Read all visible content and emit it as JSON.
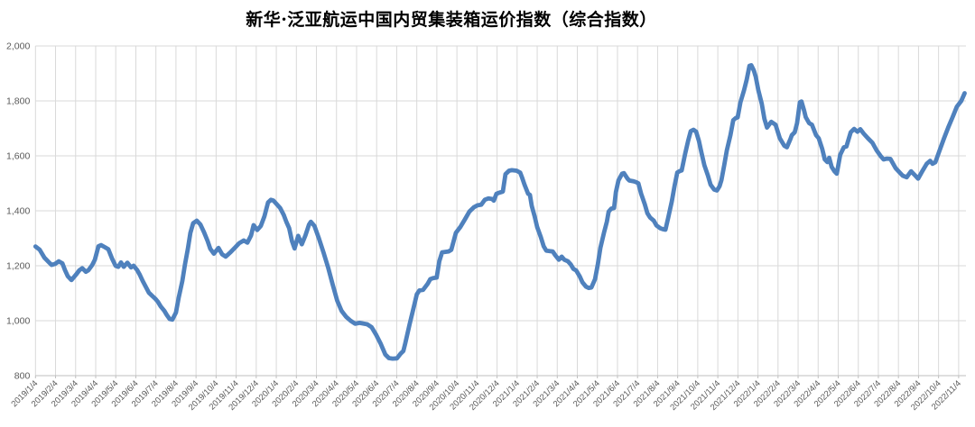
{
  "chart_data": {
    "type": "line",
    "title": "新华·泛亚航运中国内贸集装箱运价指数（综合指数）",
    "legend": "none",
    "grid": true,
    "colors": {
      "line": "#4F81BD",
      "gridline": "#D9D9D9",
      "axis_line": "#BFBFBF",
      "axis_text": "#595959",
      "title_text": "#000000",
      "background": "#FFFFFF"
    },
    "y_axis": {
      "min": 800,
      "max": 2000,
      "step": 200,
      "tick_labels": [
        "800",
        "1,000",
        "1,200",
        "1,400",
        "1,600",
        "1,800",
        "2,000"
      ]
    },
    "x_axis": {
      "label_rotation": -45,
      "categories": [
        "2019/1/4",
        "2019/2/4",
        "2019/3/4",
        "2019/4/4",
        "2019/5/4",
        "2019/6/4",
        "2019/7/4",
        "2019/8/4",
        "2019/9/4",
        "2019/10/4",
        "2019/11/4",
        "2019/12/4",
        "2020/1/4",
        "2020/2/4",
        "2020/3/4",
        "2020/4/4",
        "2020/5/4",
        "2020/6/4",
        "2020/7/4",
        "2020/8/4",
        "2020/9/4",
        "2020/10/4",
        "2020/11/4",
        "2020/12/4",
        "2021/1/4",
        "2021/2/4",
        "2021/3/4",
        "2021/4/4",
        "2021/5/4",
        "2021/6/4",
        "2021/7/4",
        "2021/8/4",
        "2021/9/4",
        "2021/10/4",
        "2021/11/4",
        "2021/12/4",
        "2022/1/4",
        "2022/2/4",
        "2022/3/4",
        "2022/4/4",
        "2022/5/4",
        "2022/6/4",
        "2022/7/4",
        "2022/8/4",
        "2022/9/4",
        "2022/10/4",
        "2022/11/4"
      ]
    },
    "series": [
      {
        "name": "综合指数",
        "x_unit": "month-index (0 = 2019/1/4 tick, 46 = 2022/11/4 tick)",
        "points": [
          [
            0,
            1270
          ],
          [
            0.21,
            1258
          ],
          [
            0.44,
            1230
          ],
          [
            0.66,
            1213
          ],
          [
            0.8,
            1203
          ],
          [
            0.98,
            1207
          ],
          [
            1.16,
            1216
          ],
          [
            1.34,
            1209
          ],
          [
            1.47,
            1184
          ],
          [
            1.61,
            1162
          ],
          [
            1.79,
            1148
          ],
          [
            2.01,
            1167
          ],
          [
            2.19,
            1184
          ],
          [
            2.33,
            1191
          ],
          [
            2.51,
            1178
          ],
          [
            2.64,
            1184
          ],
          [
            2.82,
            1202
          ],
          [
            2.96,
            1222
          ],
          [
            3.14,
            1271
          ],
          [
            3.27,
            1275
          ],
          [
            3.45,
            1268
          ],
          [
            3.63,
            1260
          ],
          [
            3.81,
            1227
          ],
          [
            3.99,
            1200
          ],
          [
            4.13,
            1196
          ],
          [
            4.26,
            1212
          ],
          [
            4.4,
            1196
          ],
          [
            4.58,
            1211
          ],
          [
            4.76,
            1194
          ],
          [
            4.89,
            1200
          ],
          [
            5.07,
            1184
          ],
          [
            5.2,
            1167
          ],
          [
            5.34,
            1145
          ],
          [
            5.52,
            1120
          ],
          [
            5.65,
            1102
          ],
          [
            5.79,
            1092
          ],
          [
            5.97,
            1080
          ],
          [
            6.1,
            1069
          ],
          [
            6.24,
            1052
          ],
          [
            6.42,
            1036
          ],
          [
            6.55,
            1020
          ],
          [
            6.69,
            1006
          ],
          [
            6.82,
            1004
          ],
          [
            7,
            1030
          ],
          [
            7.14,
            1085
          ],
          [
            7.32,
            1145
          ],
          [
            7.45,
            1205
          ],
          [
            7.59,
            1260
          ],
          [
            7.72,
            1320
          ],
          [
            7.86,
            1355
          ],
          [
            8.04,
            1364
          ],
          [
            8.22,
            1350
          ],
          [
            8.4,
            1322
          ],
          [
            8.58,
            1290
          ],
          [
            8.71,
            1262
          ],
          [
            8.89,
            1244
          ],
          [
            9.12,
            1265
          ],
          [
            9.3,
            1242
          ],
          [
            9.48,
            1233
          ],
          [
            9.7,
            1248
          ],
          [
            9.93,
            1265
          ],
          [
            10.15,
            1282
          ],
          [
            10.38,
            1292
          ],
          [
            10.56,
            1284
          ],
          [
            10.74,
            1310
          ],
          [
            10.87,
            1348
          ],
          [
            11.05,
            1330
          ],
          [
            11.23,
            1345
          ],
          [
            11.41,
            1380
          ],
          [
            11.59,
            1430
          ],
          [
            11.73,
            1440
          ],
          [
            11.86,
            1437
          ],
          [
            12.19,
            1410
          ],
          [
            12.37,
            1385
          ],
          [
            12.51,
            1358
          ],
          [
            12.64,
            1337
          ],
          [
            12.78,
            1290
          ],
          [
            12.91,
            1263
          ],
          [
            13.09,
            1309
          ],
          [
            13.27,
            1278
          ],
          [
            13.45,
            1310
          ],
          [
            13.63,
            1350
          ],
          [
            13.72,
            1360
          ],
          [
            13.9,
            1345
          ],
          [
            14.13,
            1298
          ],
          [
            14.35,
            1249
          ],
          [
            14.58,
            1194
          ],
          [
            14.8,
            1134
          ],
          [
            15.03,
            1074
          ],
          [
            15.25,
            1036
          ],
          [
            15.48,
            1014
          ],
          [
            15.7,
            1000
          ],
          [
            15.93,
            989
          ],
          [
            16.15,
            992
          ],
          [
            16.53,
            987
          ],
          [
            16.75,
            976
          ],
          [
            16.98,
            948
          ],
          [
            17.2,
            916
          ],
          [
            17.43,
            877
          ],
          [
            17.61,
            864
          ],
          [
            17.79,
            862
          ],
          [
            18.01,
            863
          ],
          [
            18.19,
            880
          ],
          [
            18.33,
            890
          ],
          [
            18.42,
            916
          ],
          [
            18.64,
            987
          ],
          [
            18.86,
            1053
          ],
          [
            19,
            1096
          ],
          [
            19.13,
            1110
          ],
          [
            19.31,
            1112
          ],
          [
            19.54,
            1134
          ],
          [
            19.67,
            1151
          ],
          [
            19.81,
            1155
          ],
          [
            19.99,
            1157
          ],
          [
            20.12,
            1216
          ],
          [
            20.26,
            1249
          ],
          [
            20.59,
            1252
          ],
          [
            20.72,
            1258
          ],
          [
            20.95,
            1320
          ],
          [
            21.17,
            1341
          ],
          [
            21.4,
            1369
          ],
          [
            21.62,
            1397
          ],
          [
            21.85,
            1413
          ],
          [
            22.03,
            1420
          ],
          [
            22.21,
            1422
          ],
          [
            22.39,
            1440
          ],
          [
            22.57,
            1445
          ],
          [
            22.75,
            1443
          ],
          [
            22.84,
            1437
          ],
          [
            22.97,
            1462
          ],
          [
            23.11,
            1466
          ],
          [
            23.29,
            1470
          ],
          [
            23.42,
            1533
          ],
          [
            23.6,
            1546
          ],
          [
            23.74,
            1548
          ],
          [
            23.97,
            1546
          ],
          [
            24.15,
            1539
          ],
          [
            24.24,
            1522
          ],
          [
            24.37,
            1495
          ],
          [
            24.55,
            1462
          ],
          [
            24.64,
            1458
          ],
          [
            24.73,
            1418
          ],
          [
            24.87,
            1380
          ],
          [
            25,
            1341
          ],
          [
            25.18,
            1304
          ],
          [
            25.32,
            1271
          ],
          [
            25.45,
            1255
          ],
          [
            25.63,
            1253
          ],
          [
            25.77,
            1252
          ],
          [
            25.9,
            1238
          ],
          [
            26.08,
            1222
          ],
          [
            26.22,
            1233
          ],
          [
            26.35,
            1222
          ],
          [
            26.53,
            1216
          ],
          [
            26.67,
            1205
          ],
          [
            26.8,
            1189
          ],
          [
            26.94,
            1183
          ],
          [
            27.12,
            1161
          ],
          [
            27.25,
            1140
          ],
          [
            27.43,
            1124
          ],
          [
            27.57,
            1119
          ],
          [
            27.7,
            1121
          ],
          [
            27.88,
            1151
          ],
          [
            28.02,
            1205
          ],
          [
            28.15,
            1266
          ],
          [
            28.33,
            1321
          ],
          [
            28.47,
            1360
          ],
          [
            28.56,
            1397
          ],
          [
            28.69,
            1408
          ],
          [
            28.83,
            1410
          ],
          [
            28.92,
            1468
          ],
          [
            29.05,
            1511
          ],
          [
            29.23,
            1535
          ],
          [
            29.32,
            1537
          ],
          [
            29.5,
            1517
          ],
          [
            29.59,
            1510
          ],
          [
            29.77,
            1508
          ],
          [
            29.91,
            1505
          ],
          [
            30.04,
            1500
          ],
          [
            30.18,
            1462
          ],
          [
            30.36,
            1424
          ],
          [
            30.49,
            1391
          ],
          [
            30.63,
            1375
          ],
          [
            30.81,
            1364
          ],
          [
            30.94,
            1347
          ],
          [
            31.12,
            1337
          ],
          [
            31.26,
            1333
          ],
          [
            31.39,
            1331
          ],
          [
            31.53,
            1375
          ],
          [
            31.71,
            1435
          ],
          [
            31.84,
            1489
          ],
          [
            31.98,
            1539
          ],
          [
            32.11,
            1545
          ],
          [
            32.2,
            1547
          ],
          [
            32.38,
            1610
          ],
          [
            32.52,
            1654
          ],
          [
            32.65,
            1690
          ],
          [
            32.79,
            1695
          ],
          [
            32.92,
            1688
          ],
          [
            33.06,
            1654
          ],
          [
            33.19,
            1610
          ],
          [
            33.33,
            1566
          ],
          [
            33.51,
            1528
          ],
          [
            33.64,
            1495
          ],
          [
            33.82,
            1477
          ],
          [
            33.96,
            1474
          ],
          [
            34.09,
            1490
          ],
          [
            34.18,
            1511
          ],
          [
            34.32,
            1566
          ],
          [
            34.45,
            1620
          ],
          [
            34.63,
            1675
          ],
          [
            34.77,
            1730
          ],
          [
            34.9,
            1738
          ],
          [
            34.99,
            1740
          ],
          [
            35.13,
            1795
          ],
          [
            35.31,
            1839
          ],
          [
            35.44,
            1877
          ],
          [
            35.58,
            1928
          ],
          [
            35.67,
            1930
          ],
          [
            35.8,
            1910
          ],
          [
            35.89,
            1888
          ],
          [
            36.02,
            1839
          ],
          [
            36.19,
            1790
          ],
          [
            36.32,
            1735
          ],
          [
            36.45,
            1703
          ],
          [
            36.66,
            1724
          ],
          [
            36.88,
            1713
          ],
          [
            37.09,
            1664
          ],
          [
            37.31,
            1637
          ],
          [
            37.44,
            1631
          ],
          [
            37.61,
            1660
          ],
          [
            37.69,
            1675
          ],
          [
            37.83,
            1686
          ],
          [
            37.95,
            1719
          ],
          [
            38.09,
            1795
          ],
          [
            38.17,
            1798
          ],
          [
            38.3,
            1765
          ],
          [
            38.38,
            1741
          ],
          [
            38.55,
            1719
          ],
          [
            38.69,
            1713
          ],
          [
            38.9,
            1675
          ],
          [
            39.03,
            1664
          ],
          [
            39.2,
            1626
          ],
          [
            39.33,
            1587
          ],
          [
            39.46,
            1577
          ],
          [
            39.55,
            1593
          ],
          [
            39.67,
            1560
          ],
          [
            39.81,
            1544
          ],
          [
            39.93,
            1535
          ],
          [
            40.1,
            1604
          ],
          [
            40.28,
            1631
          ],
          [
            40.41,
            1634
          ],
          [
            40.62,
            1686
          ],
          [
            40.79,
            1698
          ],
          [
            40.96,
            1688
          ],
          [
            41.1,
            1697
          ],
          [
            41.27,
            1681
          ],
          [
            41.48,
            1664
          ],
          [
            41.7,
            1648
          ],
          [
            41.91,
            1620
          ],
          [
            42.13,
            1598
          ],
          [
            42.26,
            1587
          ],
          [
            42.43,
            1590
          ],
          [
            42.6,
            1589
          ],
          [
            42.86,
            1555
          ],
          [
            43.07,
            1539
          ],
          [
            43.21,
            1528
          ],
          [
            43.41,
            1522
          ],
          [
            43.63,
            1544
          ],
          [
            43.84,
            1528
          ],
          [
            43.98,
            1517
          ],
          [
            44.19,
            1544
          ],
          [
            44.41,
            1571
          ],
          [
            44.58,
            1582
          ],
          [
            44.7,
            1571
          ],
          [
            44.84,
            1577
          ],
          [
            45.05,
            1620
          ],
          [
            45.27,
            1664
          ],
          [
            45.48,
            1703
          ],
          [
            45.7,
            1741
          ],
          [
            45.91,
            1779
          ],
          [
            46.13,
            1800
          ],
          [
            46.3,
            1828
          ]
        ]
      }
    ]
  }
}
